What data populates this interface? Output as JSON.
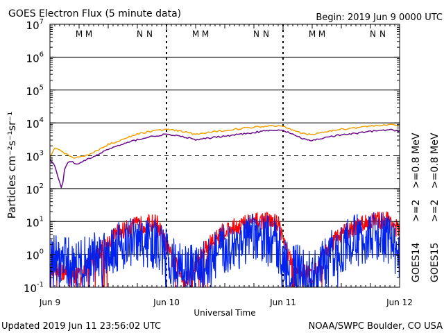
{
  "header": {
    "title": "GOES Electron Flux (5 minute data)",
    "begin": "Begin: 2019 Jun 9 0000 UTC"
  },
  "footer": {
    "updated": "Updated 2019 Jun 11 23:56:02 UTC",
    "source": "NOAA/SWPC Boulder, CO USA"
  },
  "colors": {
    "purple": "#6a0a8c",
    "orange": "#f0a000",
    "blue": "#0022ee",
    "red": "#ff0000",
    "m_marker": "#1a1ad0",
    "n_marker": "#ff0000"
  },
  "chart_data": {
    "type": "line",
    "title": "GOES Electron Flux (5 minute data)",
    "xlabel": "Universal Time",
    "ylabel": "Particles cm⁻²s⁻¹sr⁻¹",
    "yscale": "log",
    "ylim": [
      0.1,
      10000000
    ],
    "xlim": [
      "2019-06-09 00:00",
      "2019-06-12 00:00"
    ],
    "x_tick_labels": [
      "Jun 9",
      "Jun 10",
      "Jun 11",
      "Jun 12"
    ],
    "y_tick_labels": [
      {
        "base": "10",
        "exp": "-1"
      },
      {
        "base": "10",
        "exp": "0"
      },
      {
        "base": "10",
        "exp": "1"
      },
      {
        "base": "10",
        "exp": "2"
      },
      {
        "base": "10",
        "exp": "3"
      },
      {
        "base": "10",
        "exp": "4"
      },
      {
        "base": "10",
        "exp": "5"
      },
      {
        "base": "10",
        "exp": "6"
      },
      {
        "base": "10",
        "exp": "7"
      }
    ],
    "dashed_level": 1000,
    "markers": [
      {
        "label": "M",
        "color_key": "m_marker",
        "time": "2019-06-09 06:00"
      },
      {
        "label": "M",
        "color_key": "n_marker",
        "time": "2019-06-09 08:00"
      },
      {
        "label": "N",
        "color_key": "m_marker",
        "time": "2019-06-09 18:30"
      },
      {
        "label": "N",
        "color_key": "n_marker",
        "time": "2019-06-09 20:30"
      },
      {
        "label": "M",
        "color_key": "m_marker",
        "time": "2019-06-10 06:00"
      },
      {
        "label": "M",
        "color_key": "n_marker",
        "time": "2019-06-10 08:00"
      },
      {
        "label": "N",
        "color_key": "m_marker",
        "time": "2019-06-10 18:30"
      },
      {
        "label": "N",
        "color_key": "n_marker",
        "time": "2019-06-10 20:30"
      },
      {
        "label": "M",
        "color_key": "m_marker",
        "time": "2019-06-11 06:00"
      },
      {
        "label": "M",
        "color_key": "n_marker",
        "time": "2019-06-11 08:00"
      },
      {
        "label": "N",
        "color_key": "m_marker",
        "time": "2019-06-11 18:30"
      },
      {
        "label": "N",
        "color_key": "n_marker",
        "time": "2019-06-11 20:30"
      }
    ],
    "legend_right": {
      "sat14": "GOES14",
      "sat15": "GOES15",
      "purple_label": ">=0.8  MeV",
      "orange_label": ">=0.8  MeV",
      "blue_label": ">=2",
      "red_label": ">=2"
    },
    "series": [
      {
        "name": "GOES14 >=0.8 MeV",
        "color_key": "purple",
        "points": [
          [
            "2019-06-09 00:00",
            800
          ],
          [
            "2019-06-09 01:00",
            500
          ],
          [
            "2019-06-09 02:00",
            150
          ],
          [
            "2019-06-09 02:30",
            100
          ],
          [
            "2019-06-09 03:00",
            400
          ],
          [
            "2019-06-09 04:00",
            700
          ],
          [
            "2019-06-09 05:00",
            600
          ],
          [
            "2019-06-09 06:00",
            550
          ],
          [
            "2019-06-09 07:00",
            700
          ],
          [
            "2019-06-09 08:00",
            800
          ],
          [
            "2019-06-09 10:00",
            1100
          ],
          [
            "2019-06-09 12:00",
            1600
          ],
          [
            "2019-06-09 14:00",
            2000
          ],
          [
            "2019-06-09 16:00",
            2500
          ],
          [
            "2019-06-09 18:00",
            3100
          ],
          [
            "2019-06-09 20:00",
            3600
          ],
          [
            "2019-06-09 22:00",
            4100
          ],
          [
            "2019-06-10 00:00",
            4500
          ],
          [
            "2019-06-10 02:00",
            4000
          ],
          [
            "2019-06-10 04:00",
            3700
          ],
          [
            "2019-06-10 06:00",
            3000
          ],
          [
            "2019-06-10 08:00",
            3300
          ],
          [
            "2019-06-10 10:00",
            3700
          ],
          [
            "2019-06-10 12:00",
            4000
          ],
          [
            "2019-06-10 14:00",
            4300
          ],
          [
            "2019-06-10 16:00",
            4700
          ],
          [
            "2019-06-10 18:00",
            5100
          ],
          [
            "2019-06-10 20:00",
            5600
          ],
          [
            "2019-06-10 22:00",
            5900
          ],
          [
            "2019-06-11 00:00",
            5800
          ],
          [
            "2019-06-11 02:00",
            4600
          ],
          [
            "2019-06-11 04:00",
            3200
          ],
          [
            "2019-06-11 06:00",
            2900
          ],
          [
            "2019-06-11 08:00",
            3400
          ],
          [
            "2019-06-11 10:00",
            3900
          ],
          [
            "2019-06-11 12:00",
            4300
          ],
          [
            "2019-06-11 14:00",
            4600
          ],
          [
            "2019-06-11 16:00",
            5000
          ],
          [
            "2019-06-11 18:00",
            5500
          ],
          [
            "2019-06-11 20:00",
            5900
          ],
          [
            "2019-06-11 22:00",
            6100
          ],
          [
            "2019-06-12 00:00",
            5700
          ]
        ]
      },
      {
        "name": "GOES15 >=0.8 MeV",
        "color_key": "orange",
        "points": [
          [
            "2019-06-09 00:00",
            900
          ],
          [
            "2019-06-09 01:00",
            1700
          ],
          [
            "2019-06-09 02:00",
            1500
          ],
          [
            "2019-06-09 03:00",
            1200
          ],
          [
            "2019-06-09 04:00",
            1000
          ],
          [
            "2019-06-09 05:00",
            800
          ],
          [
            "2019-06-09 06:00",
            900
          ],
          [
            "2019-06-09 08:00",
            1100
          ],
          [
            "2019-06-09 10:00",
            1500
          ],
          [
            "2019-06-09 12:00",
            2200
          ],
          [
            "2019-06-09 14:00",
            2800
          ],
          [
            "2019-06-09 16:00",
            3600
          ],
          [
            "2019-06-09 18:00",
            4500
          ],
          [
            "2019-06-09 20:00",
            5300
          ],
          [
            "2019-06-09 22:00",
            5900
          ],
          [
            "2019-06-10 00:00",
            6300
          ],
          [
            "2019-06-10 02:00",
            5800
          ],
          [
            "2019-06-10 04:00",
            5200
          ],
          [
            "2019-06-10 06:00",
            4500
          ],
          [
            "2019-06-10 08:00",
            4900
          ],
          [
            "2019-06-10 10:00",
            5400
          ],
          [
            "2019-06-10 12:00",
            5900
          ],
          [
            "2019-06-10 14:00",
            6400
          ],
          [
            "2019-06-10 16:00",
            6900
          ],
          [
            "2019-06-10 18:00",
            7400
          ],
          [
            "2019-06-10 20:00",
            7900
          ],
          [
            "2019-06-10 22:00",
            8200
          ],
          [
            "2019-06-11 00:00",
            8000
          ],
          [
            "2019-06-11 02:00",
            6300
          ],
          [
            "2019-06-11 04:00",
            4700
          ],
          [
            "2019-06-11 06:00",
            4400
          ],
          [
            "2019-06-11 08:00",
            5100
          ],
          [
            "2019-06-11 10:00",
            5800
          ],
          [
            "2019-06-11 12:00",
            6400
          ],
          [
            "2019-06-11 14:00",
            6900
          ],
          [
            "2019-06-11 16:00",
            7500
          ],
          [
            "2019-06-11 18:00",
            8000
          ],
          [
            "2019-06-11 20:00",
            8500
          ],
          [
            "2019-06-11 22:00",
            8700
          ],
          [
            "2019-06-12 00:00",
            8200
          ]
        ]
      },
      {
        "name": "GOES14 >=2 MeV",
        "color_key": "blue",
        "noise": 1.0,
        "envelope": [
          [
            "2019-06-09 00:00",
            1.5
          ],
          [
            "2019-06-09 06:00",
            1.0
          ],
          [
            "2019-06-09 10:00",
            2.0
          ],
          [
            "2019-06-09 14:00",
            4.0
          ],
          [
            "2019-06-09 18:00",
            5.0
          ],
          [
            "2019-06-09 22:00",
            4.0
          ],
          [
            "2019-06-10 02:00",
            1.0
          ],
          [
            "2019-06-10 06:00",
            0.6
          ],
          [
            "2019-06-10 10:00",
            2.0
          ],
          [
            "2019-06-10 14:00",
            4.0
          ],
          [
            "2019-06-10 18:00",
            6.0
          ],
          [
            "2019-06-10 22:00",
            5.0
          ],
          [
            "2019-06-11 02:00",
            0.8
          ],
          [
            "2019-06-11 06:00",
            0.4
          ],
          [
            "2019-06-11 10:00",
            2.0
          ],
          [
            "2019-06-11 14:00",
            5.0
          ],
          [
            "2019-06-11 18:00",
            7.0
          ],
          [
            "2019-06-11 22:00",
            6.0
          ],
          [
            "2019-06-12 00:00",
            2.0
          ]
        ]
      },
      {
        "name": "GOES15 >=2 MeV",
        "color_key": "red",
        "noise": 0.35,
        "envelope": [
          [
            "2019-06-09 00:00",
            0.4
          ],
          [
            "2019-06-09 06:00",
            0.3
          ],
          [
            "2019-06-09 10:00",
            1.5
          ],
          [
            "2019-06-09 14:00",
            6.0
          ],
          [
            "2019-06-09 18:00",
            10.0
          ],
          [
            "2019-06-09 22:00",
            12.0
          ],
          [
            "2019-06-10 01:00",
            1.0
          ],
          [
            "2019-06-10 04:00",
            0.2
          ],
          [
            "2019-06-10 08:00",
            2.0
          ],
          [
            "2019-06-10 12:00",
            7.0
          ],
          [
            "2019-06-10 16:00",
            11.0
          ],
          [
            "2019-06-10 20:00",
            14.0
          ],
          [
            "2019-06-10 23:00",
            12.0
          ],
          [
            "2019-06-11 02:00",
            0.5
          ],
          [
            "2019-06-11 06:00",
            0.3
          ],
          [
            "2019-06-11 10:00",
            3.0
          ],
          [
            "2019-06-11 14:00",
            8.0
          ],
          [
            "2019-06-11 18:00",
            13.0
          ],
          [
            "2019-06-11 22:00",
            15.0
          ],
          [
            "2019-06-12 00:00",
            6.0
          ]
        ]
      }
    ]
  }
}
